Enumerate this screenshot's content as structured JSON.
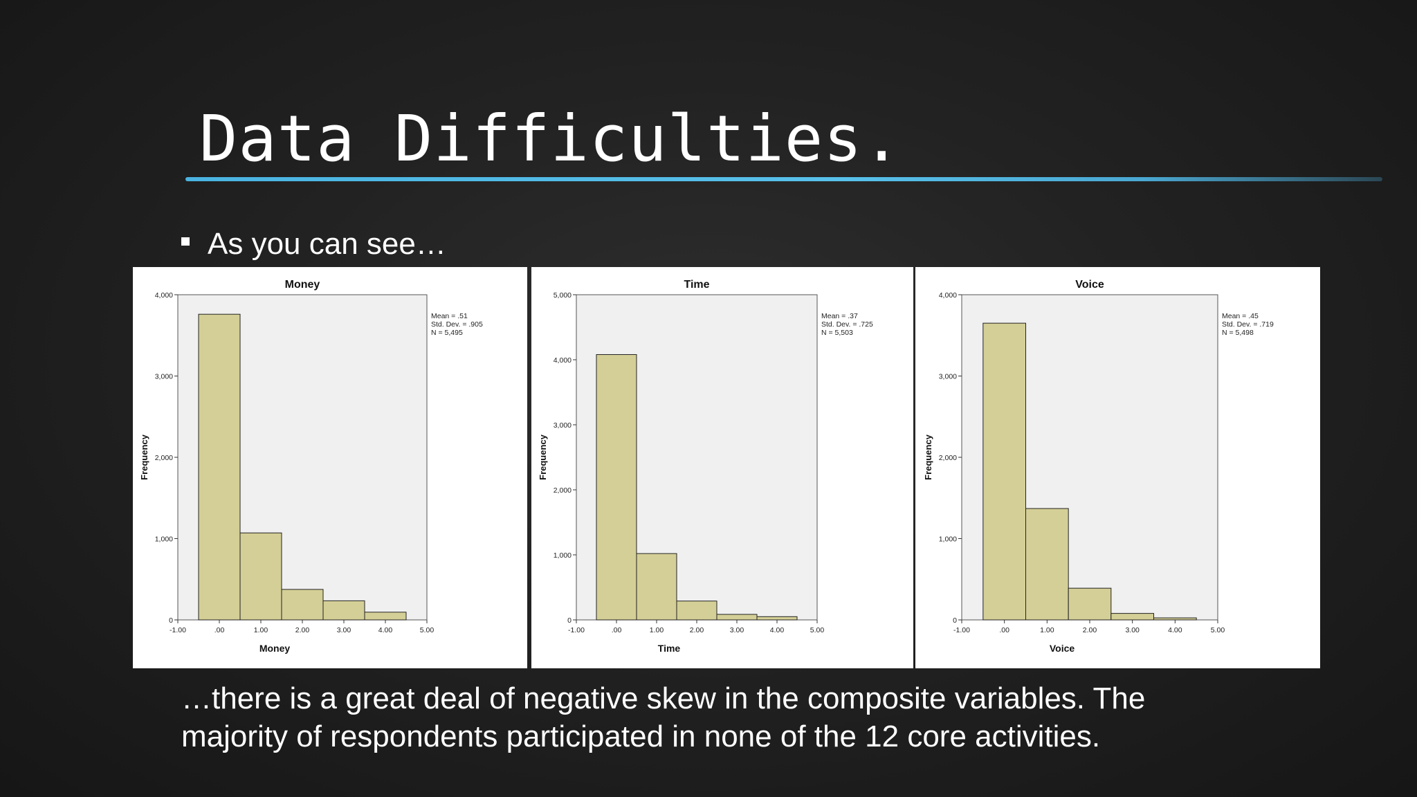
{
  "slide": {
    "title": "Data Difficulties.",
    "bullet": "As you can see…",
    "caption_line1": "…there is a great deal of negative skew in the composite variables. The",
    "caption_line2": "majority of respondents participated in none of the 12 core activities.",
    "accent_color": "#4ab3e0",
    "background_color": "#222222"
  },
  "chart_data": [
    {
      "type": "bar",
      "title": "Money",
      "xlabel": "Money",
      "ylabel": "Frequency",
      "bin_centers": [
        0,
        1,
        2,
        3,
        4
      ],
      "values": [
        3760,
        1070,
        375,
        235,
        95
      ],
      "xlim": [
        -1,
        5
      ],
      "ylim": [
        0,
        4000
      ],
      "xticks": [
        -1,
        0,
        1,
        2,
        3,
        4,
        5
      ],
      "xtick_labels": [
        "-1.00",
        ".00",
        "1.00",
        "2.00",
        "3.00",
        "4.00",
        "5.00"
      ],
      "yticks": [
        0,
        1000,
        2000,
        3000,
        4000
      ],
      "ytick_labels": [
        "0",
        "1,000",
        "2,000",
        "3,000",
        "4,000"
      ],
      "stats": [
        "Mean = .51",
        "Std. Dev. = .905",
        "N = 5,495"
      ],
      "bar_color": "#d4cf96",
      "plot_bg": "#f0f0f0"
    },
    {
      "type": "bar",
      "title": "Time",
      "xlabel": "Time",
      "ylabel": "Frequency",
      "bin_centers": [
        0,
        1,
        2,
        3,
        4
      ],
      "values": [
        4080,
        1020,
        290,
        85,
        50
      ],
      "xlim": [
        -1,
        5
      ],
      "ylim": [
        0,
        5000
      ],
      "xticks": [
        -1,
        0,
        1,
        2,
        3,
        4,
        5
      ],
      "xtick_labels": [
        "-1.00",
        ".00",
        "1.00",
        "2.00",
        "3.00",
        "4.00",
        "5.00"
      ],
      "yticks": [
        0,
        1000,
        2000,
        3000,
        4000,
        5000
      ],
      "ytick_labels": [
        "0",
        "1,000",
        "2,000",
        "3,000",
        "4,000",
        "5,000"
      ],
      "stats": [
        "Mean = .37",
        "Std. Dev. = .725",
        "N = 5,503"
      ],
      "bar_color": "#d4cf96",
      "plot_bg": "#f0f0f0"
    },
    {
      "type": "bar",
      "title": "Voice",
      "xlabel": "Voice",
      "ylabel": "Frequency",
      "bin_centers": [
        0,
        1,
        2,
        3,
        4
      ],
      "values": [
        3650,
        1370,
        390,
        80,
        25
      ],
      "xlim": [
        -1,
        5
      ],
      "ylim": [
        0,
        4000
      ],
      "xticks": [
        -1,
        0,
        1,
        2,
        3,
        4,
        5
      ],
      "xtick_labels": [
        "-1.00",
        ".00",
        "1.00",
        "2.00",
        "3.00",
        "4.00",
        "5.00"
      ],
      "yticks": [
        0,
        1000,
        2000,
        3000,
        4000
      ],
      "ytick_labels": [
        "0",
        "1,000",
        "2,000",
        "3,000",
        "4,000"
      ],
      "stats": [
        "Mean = .45",
        "Std. Dev. = .719",
        "N = 5,498"
      ],
      "bar_color": "#d4cf96",
      "plot_bg": "#f0f0f0"
    }
  ]
}
